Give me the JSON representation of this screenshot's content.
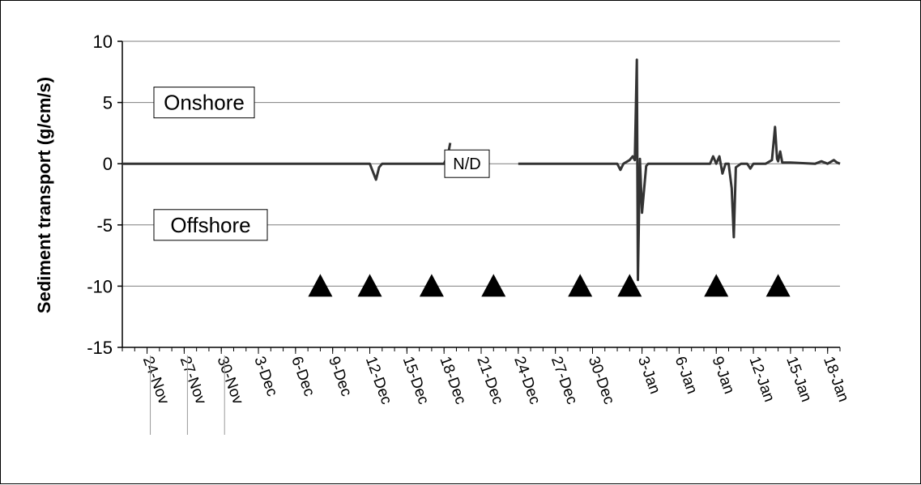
{
  "chart_data": {
    "type": "line",
    "title": "",
    "xlabel": "",
    "ylabel": "Sediment transport (g/cm/s)",
    "ylim": [
      -15,
      10
    ],
    "yticks": [
      10,
      5,
      0,
      -5,
      -10,
      -15
    ],
    "xlim": [
      "2003-11-22",
      "2004-01-19"
    ],
    "xtick_labels": [
      "24-Nov",
      "27-Nov",
      "30-Nov",
      "3-Dec",
      "6-Dec",
      "9-Dec",
      "12-Dec",
      "15-Dec",
      "18-Dec",
      "21-Dec",
      "24-Dec",
      "27-Dec",
      "30-Dec",
      "3-Jan",
      "6-Jan",
      "9-Jan",
      "12-Jan",
      "15-Jan",
      "18-Jan"
    ],
    "xtick_dates": [
      "2003-11-24",
      "2003-11-27",
      "2003-11-30",
      "2003-12-03",
      "2003-12-06",
      "2003-12-09",
      "2003-12-12",
      "2003-12-15",
      "2003-12-18",
      "2003-12-21",
      "2003-12-24",
      "2003-12-27",
      "2003-12-30",
      "2004-01-03",
      "2004-01-06",
      "2004-01-09",
      "2004-01-12",
      "2004-01-15",
      "2004-01-18"
    ],
    "grid": "horizontal",
    "annotations": [
      {
        "text": "Onshore",
        "y": 5
      },
      {
        "text": "Offshore",
        "y": -5
      },
      {
        "text": "N/D",
        "y": 0
      }
    ],
    "series": [
      {
        "segments": [
          [
            [
              "2003-11-22",
              0
            ],
            [
              "2003-12-08",
              0
            ],
            [
              "2003-12-12",
              0
            ],
            [
              "2003-12-12T12:00",
              -1.3
            ],
            [
              "2003-12-12T18:00",
              -0.3
            ],
            [
              "2003-12-13",
              0
            ],
            [
              "2003-12-18",
              0
            ],
            [
              "2003-12-18T08:00",
              0.8
            ],
            [
              "2003-12-18T12:00",
              1.7
            ]
          ],
          [
            [
              "2003-12-24",
              0
            ],
            [
              "2003-12-31",
              0
            ],
            [
              "2004-01-01",
              0
            ],
            [
              "2004-01-01T06:00",
              -0.5
            ],
            [
              "2004-01-01T12:00",
              0
            ],
            [
              "2004-01-02",
              0.3
            ],
            [
              "2004-01-02T06:00",
              0.6
            ],
            [
              "2004-01-02T10:00",
              0.3
            ],
            [
              "2004-01-02T14:00",
              8.5
            ],
            [
              "2004-01-02T16:00",
              -9.5
            ],
            [
              "2004-01-02T20:00",
              0.4
            ],
            [
              "2004-01-03",
              -4.0
            ],
            [
              "2004-01-03T08:00",
              -0.2
            ],
            [
              "2004-01-03T12:00",
              0
            ],
            [
              "2004-01-08T12:00",
              0
            ],
            [
              "2004-01-08T18:00",
              0.6
            ],
            [
              "2004-01-09",
              0
            ],
            [
              "2004-01-09T06:00",
              0.6
            ],
            [
              "2004-01-09T12:00",
              -0.8
            ],
            [
              "2004-01-09T18:00",
              0
            ],
            [
              "2004-01-10",
              0
            ],
            [
              "2004-01-10T06:00",
              -2.0
            ],
            [
              "2004-01-10T10:00",
              -6.0
            ],
            [
              "2004-01-10T14:00",
              -0.3
            ],
            [
              "2004-01-11",
              0
            ],
            [
              "2004-01-11T12:00",
              0
            ],
            [
              "2004-01-11T18:00",
              -0.4
            ],
            [
              "2004-01-12",
              0
            ],
            [
              "2004-01-13",
              0
            ],
            [
              "2004-01-13T12:00",
              0.3
            ],
            [
              "2004-01-13T18:00",
              3.0
            ],
            [
              "2004-01-13T22:00",
              0.4
            ],
            [
              "2004-01-14",
              0.2
            ],
            [
              "2004-01-14T04:00",
              1.0
            ],
            [
              "2004-01-14T08:00",
              0.1
            ],
            [
              "2004-01-15",
              0.1
            ],
            [
              "2004-01-17",
              0
            ],
            [
              "2004-01-17T12:00",
              0.2
            ],
            [
              "2004-01-18",
              0
            ],
            [
              "2004-01-18T12:00",
              0.3
            ],
            [
              "2004-01-18T18:00",
              0.1
            ],
            [
              "2004-01-19",
              0
            ]
          ]
        ]
      }
    ],
    "markers": {
      "shape": "triangle",
      "y": -10,
      "x": [
        "2003-12-08",
        "2003-12-12",
        "2003-12-17",
        "2003-12-22",
        "2003-12-29",
        "2004-01-02",
        "2004-01-09",
        "2004-01-14"
      ]
    },
    "colors": {
      "line": "#333333",
      "grid": "#7f7f7f",
      "marker": "#000000"
    }
  }
}
